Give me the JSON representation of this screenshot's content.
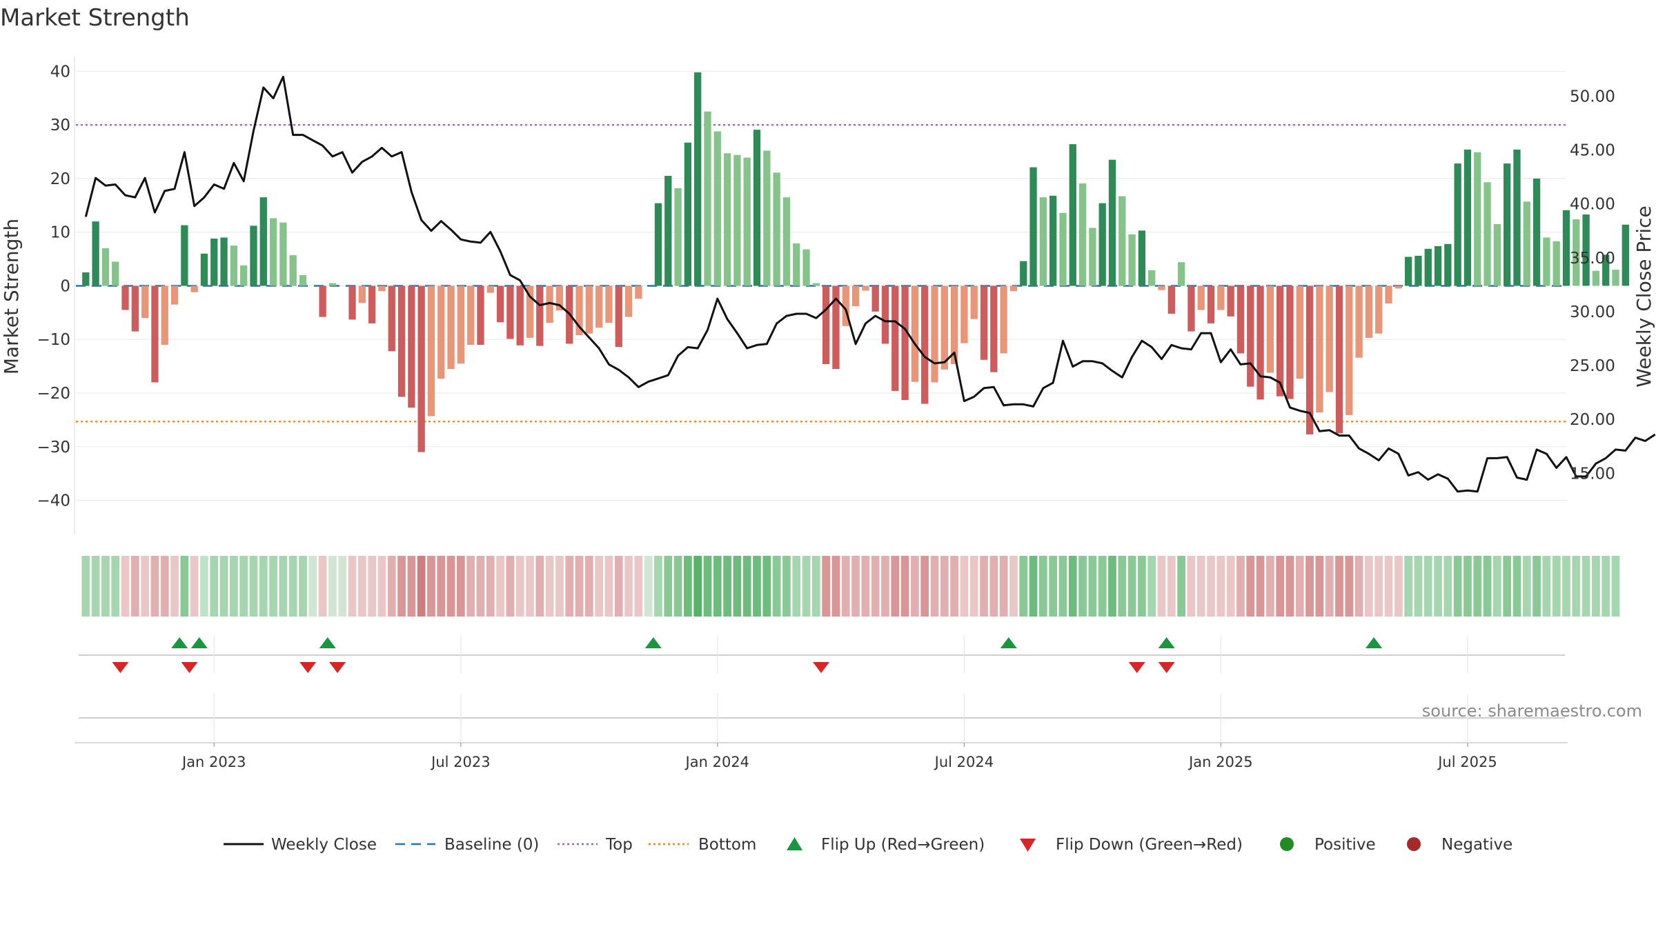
{
  "chart_data": {
    "type": "bar+line",
    "title": "Market Strength",
    "ylabel_left": "Market Strength",
    "ylabel_right": "Weekly Close Price",
    "left_axis": {
      "ylim": [
        -47,
        43
      ],
      "ticks": [
        -40,
        -30,
        -20,
        -10,
        0,
        10,
        20,
        30,
        40
      ],
      "tick_labels": [
        "−40",
        "−30",
        "−20",
        "−10",
        "0",
        "10",
        "20",
        "30",
        "40"
      ]
    },
    "right_axis": {
      "ylim": [
        9.0,
        53.8
      ],
      "ticks": [
        15,
        20,
        25,
        30,
        35,
        40,
        45,
        50
      ],
      "tick_labels": [
        "15.00",
        "20.00",
        "25.00",
        "30.00",
        "35.00",
        "40.00",
        "45.00",
        "50.00"
      ]
    },
    "reference_lines": {
      "baseline": 0,
      "top": 30,
      "bottom": -25.3
    },
    "x_start_week": -1,
    "x_end_week": 150,
    "xticks": [
      {
        "label": "Jan 2023",
        "week": 13
      },
      {
        "label": "Jul 2023",
        "week": 38
      },
      {
        "label": "Jan 2024",
        "week": 64
      },
      {
        "label": "Jul 2024",
        "week": 89
      },
      {
        "label": "Jan 2025",
        "week": 115
      },
      {
        "label": "Jul 2025",
        "week": 140
      }
    ],
    "strength": [
      2.5,
      12,
      7,
      4.5,
      -4.5,
      -8.5,
      -6,
      -18,
      -11,
      -3.5,
      11.3,
      -1.2,
      6,
      8.8,
      9,
      7.5,
      3.8,
      11.2,
      16.5,
      12.6,
      11.8,
      5.7,
      2,
      0,
      -5.8,
      0.5,
      0,
      -6.3,
      -3.2,
      -7,
      -1,
      -12.2,
      -20.7,
      -22.7,
      -31,
      -24.3,
      -17.3,
      -15.5,
      -14.5,
      -11,
      -11,
      -1.3,
      -6.8,
      -9.9,
      -11.1,
      -9.7,
      -11.2,
      -6.9,
      -4.6,
      -10.8,
      -9.2,
      -8.9,
      -7.8,
      -6.9,
      -11.4,
      -5.8,
      -2.4,
      0,
      15.4,
      20.5,
      18.2,
      26.7,
      39.8,
      32.5,
      28.8,
      24.7,
      24.4,
      23.9,
      29.1,
      25.2,
      21.1,
      16.5,
      7.9,
      6.8,
      0.5,
      -14.6,
      -15.5,
      -7.5,
      -3.8,
      -0.9,
      -4.8,
      -10.8,
      -19.6,
      -21.3,
      -17.9,
      -22,
      -18,
      -15.6,
      -14.6,
      -10.7,
      -6.2,
      -13.8,
      -16.1,
      -12.6,
      -1,
      4.6,
      22.1,
      16.5,
      16.8,
      13.6,
      26.4,
      19.1,
      10.8,
      15.4,
      23.5,
      16.7,
      9.6,
      10.3,
      2.9,
      -0.8,
      -5.2,
      4.4,
      -8.5,
      -4.5,
      -7,
      -4.5,
      -5.7,
      -12.6,
      -18.8,
      -21.2,
      -16.2,
      -20.6,
      -21.1,
      -17.3,
      -27.7,
      -23.6,
      -19.8,
      -27.5,
      -24.1,
      -13.4,
      -9.7,
      -8.9,
      -3.3,
      -0.5,
      5.4,
      5.6,
      6.9,
      7.4,
      7.8,
      22.8,
      25.4,
      24.9,
      19.3,
      11.5,
      22.8,
      25.4,
      15.7,
      20,
      9,
      8.3,
      14.1,
      12.4,
      13.3,
      2.8,
      5.8,
      3,
      11.4
    ],
    "weekly_close": [
      38.8,
      42.4,
      41.7,
      41.8,
      40.8,
      40.6,
      42.4,
      39.2,
      41.2,
      41.4,
      44.8,
      39.8,
      40.6,
      41.8,
      41.4,
      43.8,
      42.1,
      46.8,
      50.8,
      49.8,
      51.8,
      46.4,
      46.4,
      45.9,
      45.4,
      44.4,
      44.8,
      42.9,
      43.9,
      44.4,
      45.2,
      44.4,
      44.8,
      41.1,
      38.5,
      37.5,
      38.4,
      37.6,
      36.7,
      36.5,
      36.4,
      37.4,
      35.6,
      33.4,
      32.9,
      31.4,
      30.6,
      30.8,
      30.6,
      29.8,
      28.6,
      27.6,
      26.6,
      25.1,
      24.6,
      23.9,
      23.0,
      23.5,
      23.8,
      24.1,
      25.9,
      26.7,
      26.6,
      28.3,
      31.2,
      29.3,
      28.0,
      26.6,
      26.9,
      27.0,
      28.9,
      29.6,
      29.8,
      29.8,
      29.4,
      30.2,
      31.2,
      30.2,
      27.0,
      28.9,
      29.6,
      29.1,
      29.1,
      28.4,
      27.0,
      25.8,
      25.2,
      25.3,
      26.2,
      21.7,
      22.1,
      22.9,
      23.0,
      21.3,
      21.4,
      21.4,
      21.2,
      22.9,
      23.4,
      27.3,
      24.9,
      25.4,
      25.4,
      25.2,
      24.5,
      23.9,
      25.8,
      27.3,
      26.7,
      25.6,
      26.9,
      26.6,
      26.5,
      28.0,
      28.0,
      25.3,
      26.5,
      25.1,
      25.2,
      24.0,
      23.9,
      23.4,
      21.1,
      20.8,
      20.6,
      18.9,
      19.0,
      18.5,
      18.5,
      17.3,
      16.8,
      16.2,
      17.3,
      16.8,
      14.8,
      15.1,
      14.4,
      14.9,
      14.5,
      13.3,
      13.4,
      13.3,
      16.4,
      16.4,
      16.5,
      14.6,
      14.4,
      17.2,
      16.8,
      15.5,
      16.5,
      14.7,
      14.7,
      15.9,
      16.4,
      17.2,
      17.1,
      18.3,
      18.0,
      18.6
    ],
    "regime_band": [
      2,
      2,
      2,
      2,
      -1,
      -2,
      -1,
      -2,
      -2,
      -1,
      3,
      -1,
      1,
      2,
      2,
      2,
      2,
      2,
      2,
      2,
      2,
      2,
      2,
      0,
      -1,
      0,
      0,
      -1,
      -1,
      -1,
      -1,
      -2,
      -3,
      -3,
      -4,
      -3,
      -3,
      -3,
      -3,
      -2,
      -2,
      -2,
      -1,
      -2,
      -1,
      -1,
      -2,
      -1,
      -1,
      -2,
      -2,
      -2,
      -1,
      -1,
      -2,
      -1,
      -1,
      0,
      2,
      3,
      3,
      4,
      5,
      4,
      4,
      4,
      4,
      4,
      4,
      4,
      3,
      3,
      2,
      2,
      2,
      -3,
      -3,
      -2,
      -2,
      -2,
      -2,
      -2,
      -3,
      -3,
      -2,
      -3,
      -2,
      -2,
      -2,
      -1,
      -1,
      -2,
      -2,
      -2,
      -1,
      3,
      4,
      3,
      3,
      3,
      4,
      3,
      3,
      3,
      4,
      3,
      3,
      3,
      2,
      -1,
      -1,
      3,
      -1,
      -1,
      -1,
      -1,
      -1,
      -2,
      -3,
      -3,
      -2,
      -3,
      -3,
      -2,
      -3,
      -3,
      -2,
      -3,
      -3,
      -2,
      -1,
      -1,
      -1,
      -1,
      2,
      2,
      2,
      2,
      2,
      3,
      3,
      3,
      3,
      2,
      3,
      3,
      2,
      3,
      2,
      2,
      2,
      2,
      2,
      2,
      2,
      2
    ],
    "flip_up_weeks": [
      9.5,
      11.5,
      24.5,
      57.5,
      93.5,
      109.5,
      130.5
    ],
    "flip_down_weeks": [
      3.5,
      10.5,
      22.5,
      25.5,
      74.5,
      106.5,
      109.5
    ],
    "legend": [
      "Weekly Close",
      "Baseline (0)",
      "Top",
      "Bottom",
      "Flip Up (Red→Green)",
      "Flip Down (Green→Red)",
      "Positive",
      "Negative"
    ],
    "source": "source: sharemaestro.com",
    "colors": {
      "pos_dark": "#2e8a57",
      "pos_light": "#86c38a",
      "neg_dark": "#cd5c5c",
      "neg_light": "#e8967a",
      "line": "#111111",
      "baseline": "#1f77b4",
      "top": "#9467bd",
      "bottom": "#ff7f0e",
      "flip_up": "#1a9641",
      "flip_down": "#d62728",
      "positive_dot": "#228b22",
      "negative_dot": "#a52a2a",
      "grid": "#e8e8e8"
    }
  }
}
